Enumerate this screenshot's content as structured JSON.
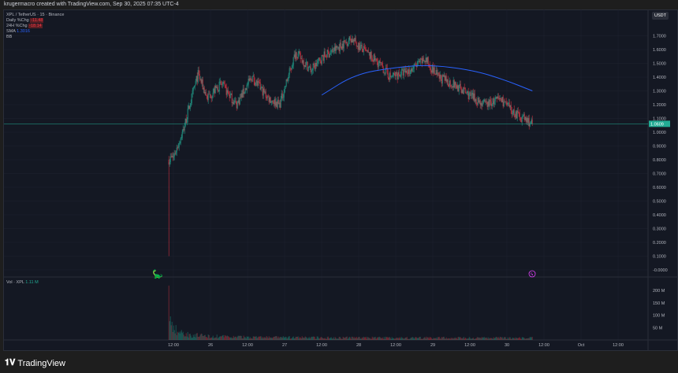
{
  "header": {
    "caption": "krugermacro created with TradingView.com, Sep 30, 2025 07:35 UTC-4"
  },
  "legend": {
    "symbol": "XPL / TetherUS · 15 · Binance",
    "daily_label": "Daily %Chg",
    "daily_value": "-11.48",
    "h24_label": "24H %Chg",
    "h24_value": "-18.14",
    "sma_label": "SMA",
    "sma_value": "1.3016",
    "bb_label": "BB"
  },
  "volume_legend": {
    "label": "Vol · XPL",
    "value": "1.11 M"
  },
  "price_axis": {
    "currency": "USDT",
    "ticks": [
      "1.7000",
      "1.6000",
      "1.5000",
      "1.4000",
      "1.3000",
      "1.2000",
      "1.1000",
      "1.0000",
      "0.9000",
      "0.8000",
      "0.7000",
      "0.6000",
      "0.5000",
      "0.4000",
      "0.3000",
      "0.2000",
      "0.1000",
      "-0.0000"
    ],
    "last_price": "1.0609"
  },
  "volume_axis": {
    "ticks": [
      "200 M",
      "150 M",
      "100 M",
      "50 M"
    ]
  },
  "time_axis": {
    "ticks": [
      "12:00",
      "26",
      "12:00",
      "27",
      "12:00",
      "28",
      "12:00",
      "29",
      "12:00",
      "30",
      "12:00",
      "Oct",
      "12:00"
    ]
  },
  "footer": {
    "brand": "TradingView"
  },
  "colors": {
    "up": "#22ab94",
    "down": "#f23645",
    "sma": "#2962ff",
    "last_price": "#22ab94",
    "background": "#141823"
  },
  "chart_data": {
    "type": "candlestick",
    "symbol": "XPLUSDT",
    "interval": "15",
    "price_path": [
      [
        "2025-09-25 10:30",
        0.8
      ],
      [
        "2025-09-25 12:00",
        0.82
      ],
      [
        "2025-09-25 15:00",
        1.0
      ],
      [
        "2025-09-25 18:30",
        1.3
      ],
      [
        "2025-09-25 20:00",
        1.42
      ],
      [
        "2025-09-25 23:00",
        1.25
      ],
      [
        "2025-09-26 03:30",
        1.35
      ],
      [
        "2025-09-26 08:30",
        1.2
      ],
      [
        "2025-09-26 13:30",
        1.4
      ],
      [
        "2025-09-26 18:45",
        1.25
      ],
      [
        "2025-09-26 22:30",
        1.2
      ],
      [
        "2025-09-27 03:45",
        1.58
      ],
      [
        "2025-09-27 08:45",
        1.45
      ],
      [
        "2025-09-27 12:45",
        1.55
      ],
      [
        "2025-09-27 16:30",
        1.6
      ],
      [
        "2025-09-27 21:45",
        1.68
      ],
      [
        "2025-09-28 01:30",
        1.6
      ],
      [
        "2025-09-28 06:45",
        1.5
      ],
      [
        "2025-09-28 10:30",
        1.4
      ],
      [
        "2025-09-28 17:00",
        1.45
      ],
      [
        "2025-09-28 22:00",
        1.53
      ],
      [
        "2025-09-29 02:00",
        1.4
      ],
      [
        "2025-09-29 07:00",
        1.35
      ],
      [
        "2025-09-29 13:30",
        1.25
      ],
      [
        "2025-09-29 17:15",
        1.2
      ],
      [
        "2025-09-29 22:30",
        1.24
      ],
      [
        "2025-09-30 02:15",
        1.15
      ],
      [
        "2025-09-30 08:45",
        1.06
      ]
    ],
    "first_candle_low": 0.1,
    "sma_path": [
      [
        "2025-09-27 12:15",
        1.27
      ],
      [
        "2025-09-27 23:00",
        1.42
      ],
      [
        "2025-09-28 11:45",
        1.47
      ],
      [
        "2025-09-28 23:15",
        1.49
      ],
      [
        "2025-09-29 13:30",
        1.45
      ],
      [
        "2025-09-29 23:45",
        1.38
      ],
      [
        "2025-09-30 08:45",
        1.3
      ]
    ],
    "volume_peak_millions": 220,
    "typical_volume_millions": 8,
    "price_range": [
      -0.05,
      1.75
    ],
    "volume_range": [
      0,
      230
    ]
  }
}
